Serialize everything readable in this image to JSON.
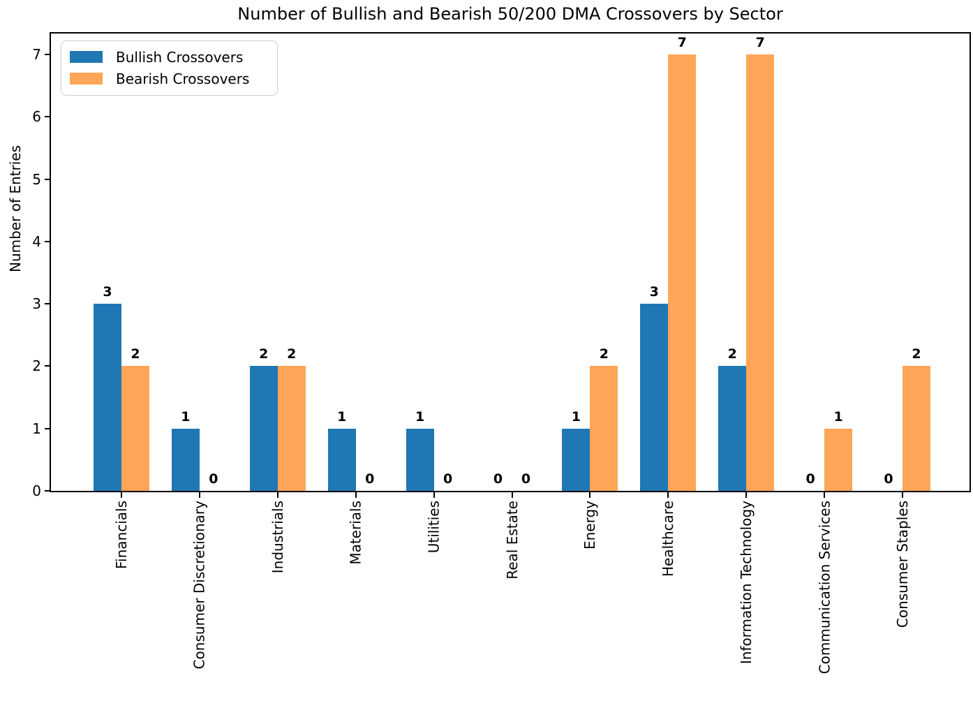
{
  "chart_data": {
    "type": "bar",
    "title": "Number of Bullish and Bearish 50/200 DMA Crossovers by Sector",
    "xlabel": "",
    "ylabel": "Number of Entries",
    "categories": [
      "Financials",
      "Consumer Discretionary",
      "Industrials",
      "Materials",
      "Utilities",
      "Real Estate",
      "Energy",
      "Healthcare",
      "Information Technology",
      "Communication Services",
      "Consumer Staples"
    ],
    "series": [
      {
        "name": "Bullish Crossovers",
        "color": "#1f77b4",
        "values": [
          3,
          1,
          2,
          1,
          1,
          0,
          1,
          3,
          2,
          0,
          0
        ]
      },
      {
        "name": "Bearish Crossovers",
        "color": "#ffa557",
        "values": [
          2,
          0,
          2,
          0,
          0,
          0,
          2,
          7,
          7,
          1,
          2
        ]
      }
    ],
    "yticks": [
      0,
      1,
      2,
      3,
      4,
      5,
      6,
      7
    ],
    "ylim": [
      0,
      7.34
    ],
    "bar_value_labels": true,
    "legend_position": "upper left",
    "grid": false,
    "background_color": "#ffffff",
    "text_color": "#000000"
  }
}
